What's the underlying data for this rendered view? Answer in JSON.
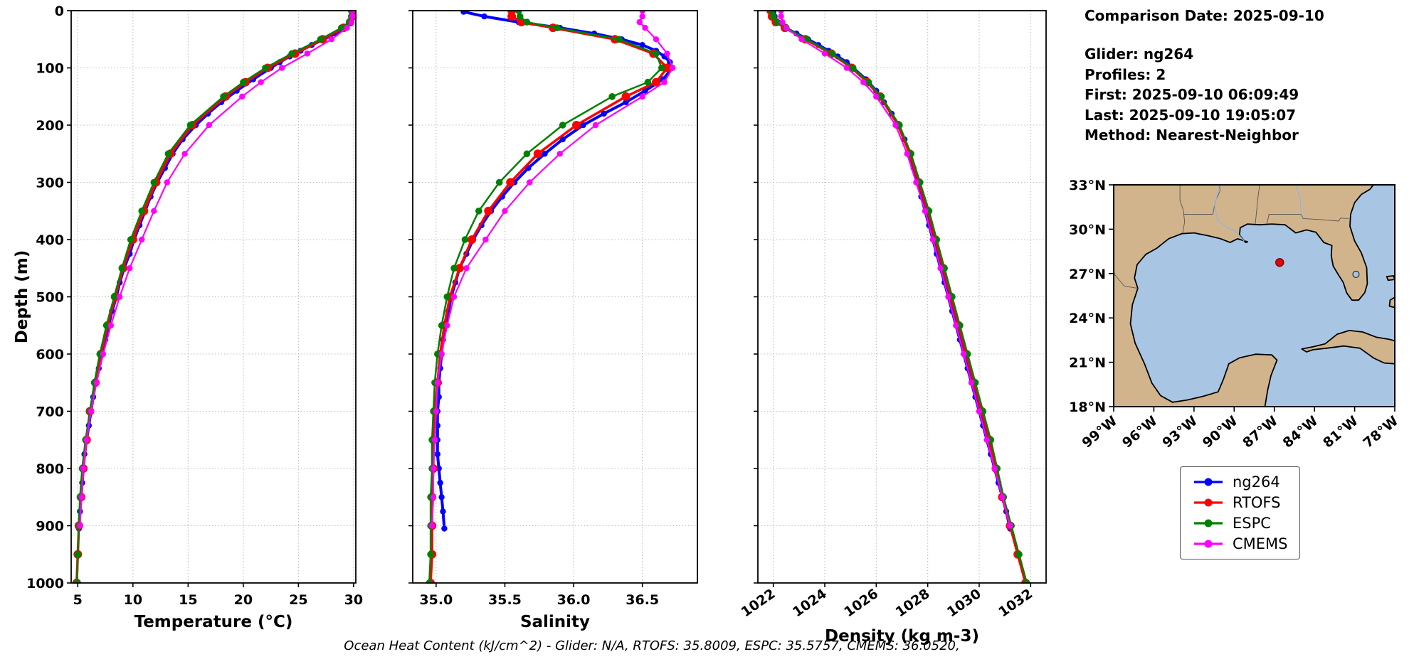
{
  "info_panel": {
    "comparison_date": "Comparison Date: 2025-09-10",
    "glider": "Glider: ng264",
    "profiles": "Profiles: 2",
    "first": "First: 2025-09-10 06:09:49",
    "last": "Last: 2025-09-10 19:05:07",
    "method": "Method: Nearest-Neighbor"
  },
  "legend": [
    {
      "label": "ng264",
      "color": "#0000ff"
    },
    {
      "label": "RTOFS",
      "color": "#ff0000"
    },
    {
      "label": "ESPC",
      "color": "#008000"
    },
    {
      "label": "CMEMS",
      "color": "#ff00ff"
    }
  ],
  "footer": {
    "text": "Ocean Heat Content (kJ/cm^2) - Glider: N/A,  RTOFS: 35.8009,  ESPC: 35.5757,  CMEMS: 36.0520,"
  },
  "map": {
    "lon_range": [
      -99,
      -78
    ],
    "lat_range": [
      18,
      33
    ],
    "lon_tick_vals": [
      -99,
      -96,
      -93,
      -90,
      -87,
      -84,
      -81,
      -78
    ],
    "lon_tick_labels": [
      "99°W",
      "96°W",
      "93°W",
      "90°W",
      "87°W",
      "84°W",
      "81°W",
      "78°W"
    ],
    "lat_tick_vals": [
      33,
      30,
      27,
      24,
      21,
      18
    ],
    "lat_tick_labels": [
      "33°N",
      "30°N",
      "27°N",
      "24°N",
      "21°N",
      "18°N"
    ],
    "land_color": "#d2b48c",
    "water_color": "#a8c6e4",
    "marker": {
      "lon": -86.6,
      "lat": 27.75,
      "color": "#e8000b"
    }
  },
  "chart_data": [
    {
      "type": "line",
      "xlabel": "Temperature (°C)",
      "ylabel": "Depth (m)",
      "xlim": [
        4.4,
        30.2
      ],
      "ylim": [
        0,
        1000
      ],
      "xticks": [
        5,
        10,
        15,
        20,
        25,
        30
      ],
      "xtick_labels": [
        "5",
        "10",
        "15",
        "20",
        "25",
        "30"
      ],
      "yticks": [
        0,
        100,
        200,
        300,
        400,
        500,
        600,
        700,
        800,
        900,
        1000
      ],
      "grid": true,
      "series": [
        {
          "name": "ng264",
          "color": "#0000ff",
          "depths": [
            2,
            10,
            20,
            30,
            40,
            50,
            60,
            70,
            80,
            90,
            100,
            120,
            140,
            160,
            180,
            200,
            225,
            250,
            275,
            300,
            325,
            350,
            375,
            400,
            425,
            450,
            475,
            500,
            525,
            550,
            575,
            600,
            625,
            650,
            675,
            700,
            725,
            750,
            775,
            800,
            825,
            850,
            875,
            905
          ],
          "values": [
            29.9,
            29.9,
            29.8,
            29.3,
            28.4,
            27.3,
            26.2,
            25.2,
            24.2,
            23.3,
            22.5,
            20.9,
            19.4,
            18.0,
            16.8,
            15.7,
            14.5,
            13.6,
            12.9,
            12.2,
            11.6,
            11.1,
            10.6,
            10.1,
            9.7,
            9.2,
            8.8,
            8.5,
            8.1,
            7.8,
            7.5,
            7.2,
            6.9,
            6.6,
            6.4,
            6.2,
            6.0,
            5.8,
            5.6,
            5.5,
            5.4,
            5.3,
            5.2,
            5.1
          ]
        },
        {
          "name": "RTOFS",
          "color": "#ff0000",
          "depths": [
            0,
            10,
            20,
            30,
            50,
            75,
            100,
            125,
            150,
            200,
            250,
            300,
            350,
            400,
            450,
            500,
            550,
            600,
            650,
            700,
            750,
            800,
            850,
            900,
            950,
            1000
          ],
          "values": [
            29.9,
            29.9,
            29.7,
            29.1,
            27.2,
            24.7,
            22.2,
            20.2,
            18.4,
            15.4,
            13.4,
            12.1,
            11.0,
            10.0,
            9.1,
            8.4,
            7.7,
            7.1,
            6.6,
            6.1,
            5.8,
            5.5,
            5.3,
            5.1,
            5.0,
            4.9
          ]
        },
        {
          "name": "ESPC",
          "color": "#008000",
          "depths": [
            0,
            10,
            20,
            30,
            50,
            75,
            100,
            125,
            150,
            200,
            250,
            300,
            350,
            400,
            450,
            500,
            550,
            600,
            650,
            700,
            750,
            800,
            850,
            900,
            950,
            1000
          ],
          "values": [
            29.8,
            29.8,
            29.6,
            28.9,
            27.0,
            24.4,
            22.0,
            20.0,
            18.2,
            15.2,
            13.2,
            11.9,
            10.8,
            9.8,
            9.0,
            8.3,
            7.6,
            7.0,
            6.5,
            6.1,
            5.7,
            5.4,
            5.2,
            5.1,
            5.0,
            4.95
          ]
        },
        {
          "name": "CMEMS",
          "color": "#ff00ff",
          "depths": [
            0,
            10,
            20,
            30,
            50,
            75,
            100,
            125,
            150,
            200,
            250,
            300,
            350,
            400,
            450,
            500,
            550,
            600,
            650,
            700,
            750,
            800,
            850,
            900
          ],
          "values": [
            29.9,
            29.9,
            29.8,
            29.4,
            28.0,
            25.8,
            23.5,
            21.6,
            19.9,
            16.9,
            14.7,
            13.1,
            11.9,
            10.8,
            9.7,
            8.8,
            8.0,
            7.3,
            6.7,
            6.2,
            5.8,
            5.5,
            5.35,
            5.2
          ]
        }
      ]
    },
    {
      "type": "line",
      "xlabel": "Salinity",
      "ylabel": "",
      "xlim": [
        34.83,
        36.9
      ],
      "ylim": [
        0,
        1000
      ],
      "xticks": [
        35.0,
        35.5,
        36.0,
        36.5
      ],
      "xtick_labels": [
        "35.0",
        "35.5",
        "36.0",
        "36.5"
      ],
      "yticks": [
        0,
        100,
        200,
        300,
        400,
        500,
        600,
        700,
        800,
        900,
        1000
      ],
      "grid": true,
      "series": [
        {
          "name": "ng264",
          "color": "#0000ff",
          "depths": [
            2,
            10,
            20,
            30,
            40,
            50,
            60,
            70,
            80,
            90,
            100,
            120,
            140,
            160,
            180,
            200,
            225,
            250,
            275,
            300,
            325,
            350,
            375,
            400,
            425,
            450,
            475,
            500,
            525,
            550,
            575,
            600,
            625,
            650,
            675,
            700,
            725,
            750,
            775,
            800,
            825,
            850,
            875,
            905
          ],
          "values": [
            35.2,
            35.35,
            35.6,
            35.9,
            36.15,
            36.35,
            36.5,
            36.6,
            36.66,
            36.7,
            36.72,
            36.65,
            36.52,
            36.38,
            36.22,
            36.07,
            35.92,
            35.79,
            35.67,
            35.57,
            35.48,
            35.4,
            35.33,
            35.27,
            35.22,
            35.17,
            35.14,
            35.11,
            35.09,
            35.07,
            35.05,
            35.04,
            35.03,
            35.02,
            35.02,
            35.01,
            35.01,
            35.01,
            35.01,
            35.02,
            35.03,
            35.04,
            35.05,
            35.06
          ]
        },
        {
          "name": "RTOFS",
          "color": "#ff0000",
          "depths": [
            0,
            10,
            20,
            30,
            50,
            75,
            100,
            125,
            150,
            200,
            250,
            300,
            350,
            400,
            450,
            500,
            550,
            600,
            650,
            700,
            750,
            800,
            850,
            900,
            950,
            1000
          ],
          "values": [
            35.55,
            35.55,
            35.62,
            35.85,
            36.3,
            36.58,
            36.68,
            36.6,
            36.38,
            36.02,
            35.74,
            35.54,
            35.38,
            35.26,
            35.17,
            35.1,
            35.06,
            35.03,
            35.01,
            34.99,
            34.98,
            34.98,
            34.97,
            34.97,
            34.97,
            34.96
          ]
        },
        {
          "name": "ESPC",
          "color": "#008000",
          "depths": [
            0,
            10,
            20,
            30,
            50,
            75,
            100,
            125,
            150,
            200,
            250,
            300,
            350,
            400,
            450,
            500,
            550,
            600,
            650,
            700,
            750,
            800,
            850,
            900,
            950,
            1000
          ],
          "values": [
            35.6,
            35.61,
            35.66,
            35.88,
            36.33,
            36.6,
            36.64,
            36.54,
            36.28,
            35.92,
            35.66,
            35.46,
            35.31,
            35.21,
            35.13,
            35.08,
            35.04,
            35.01,
            34.99,
            34.98,
            34.97,
            34.97,
            34.96,
            34.96,
            34.96,
            34.95
          ]
        },
        {
          "name": "CMEMS",
          "color": "#ff00ff",
          "depths": [
            0,
            10,
            20,
            30,
            50,
            75,
            100,
            125,
            150,
            200,
            250,
            300,
            350,
            400,
            450,
            500,
            550,
            600,
            650,
            700,
            750,
            800,
            850,
            900
          ],
          "values": [
            36.5,
            36.5,
            36.48,
            36.52,
            36.6,
            36.68,
            36.72,
            36.66,
            36.5,
            36.16,
            35.9,
            35.68,
            35.5,
            35.36,
            35.22,
            35.13,
            35.08,
            35.04,
            35.01,
            35.0,
            34.99,
            34.98,
            34.98,
            34.97
          ]
        }
      ]
    },
    {
      "type": "line",
      "xlabel": "Density (kg m-3)",
      "ylabel": "",
      "xlim": [
        1021.4,
        1032.6
      ],
      "ylim": [
        0,
        1000
      ],
      "xticks": [
        1022,
        1024,
        1026,
        1028,
        1030,
        1032
      ],
      "xtick_labels": [
        "1022",
        "1024",
        "1026",
        "1028",
        "1030",
        "1032"
      ],
      "yticks": [
        0,
        100,
        200,
        300,
        400,
        500,
        600,
        700,
        800,
        900,
        1000
      ],
      "grid": true,
      "series": [
        {
          "name": "ng264",
          "color": "#0000ff",
          "depths": [
            2,
            10,
            20,
            30,
            40,
            50,
            60,
            70,
            80,
            90,
            100,
            120,
            140,
            160,
            180,
            200,
            225,
            250,
            275,
            300,
            325,
            350,
            375,
            400,
            425,
            450,
            475,
            500,
            525,
            550,
            575,
            600,
            625,
            650,
            675,
            700,
            725,
            750,
            775,
            800,
            825,
            850,
            875,
            905
          ],
          "values": [
            1022.0,
            1022.05,
            1022.15,
            1022.45,
            1022.9,
            1023.35,
            1023.75,
            1024.15,
            1024.5,
            1024.85,
            1025.1,
            1025.6,
            1026.0,
            1026.3,
            1026.6,
            1026.85,
            1027.1,
            1027.3,
            1027.45,
            1027.6,
            1027.75,
            1027.9,
            1028.05,
            1028.2,
            1028.35,
            1028.5,
            1028.65,
            1028.8,
            1028.95,
            1029.1,
            1029.25,
            1029.4,
            1029.55,
            1029.7,
            1029.85,
            1030.0,
            1030.15,
            1030.3,
            1030.45,
            1030.6,
            1030.75,
            1030.9,
            1031.05,
            1031.2
          ]
        },
        {
          "name": "RTOFS",
          "color": "#ff0000",
          "depths": [
            0,
            10,
            20,
            30,
            50,
            75,
            100,
            125,
            150,
            200,
            250,
            300,
            350,
            400,
            450,
            500,
            550,
            600,
            650,
            700,
            750,
            800,
            850,
            900,
            950,
            1000
          ],
          "values": [
            1021.9,
            1021.95,
            1022.1,
            1022.45,
            1023.25,
            1024.25,
            1025.05,
            1025.65,
            1026.15,
            1026.85,
            1027.3,
            1027.65,
            1028.0,
            1028.3,
            1028.6,
            1028.9,
            1029.2,
            1029.5,
            1029.8,
            1030.1,
            1030.4,
            1030.65,
            1030.9,
            1031.2,
            1031.5,
            1031.8
          ]
        },
        {
          "name": "ESPC",
          "color": "#008000",
          "depths": [
            0,
            10,
            20,
            30,
            50,
            75,
            100,
            125,
            150,
            200,
            250,
            300,
            350,
            400,
            450,
            500,
            550,
            600,
            650,
            700,
            750,
            800,
            850,
            900,
            950,
            1000
          ],
          "values": [
            1021.95,
            1022.0,
            1022.15,
            1022.5,
            1023.3,
            1024.3,
            1025.1,
            1025.7,
            1026.2,
            1026.9,
            1027.35,
            1027.7,
            1028.05,
            1028.35,
            1028.65,
            1028.95,
            1029.25,
            1029.55,
            1029.85,
            1030.15,
            1030.45,
            1030.7,
            1030.95,
            1031.25,
            1031.55,
            1031.85
          ]
        },
        {
          "name": "CMEMS",
          "color": "#ff00ff",
          "depths": [
            0,
            10,
            20,
            30,
            50,
            75,
            100,
            125,
            150,
            200,
            250,
            300,
            350,
            400,
            450,
            500,
            550,
            600,
            650,
            700,
            750,
            800,
            850,
            900
          ],
          "values": [
            1022.3,
            1022.3,
            1022.35,
            1022.5,
            1023.1,
            1024.0,
            1024.85,
            1025.5,
            1026.0,
            1026.75,
            1027.2,
            1027.55,
            1027.9,
            1028.2,
            1028.5,
            1028.8,
            1029.1,
            1029.4,
            1029.7,
            1030.0,
            1030.3,
            1030.6,
            1030.9,
            1031.2
          ]
        }
      ]
    }
  ]
}
